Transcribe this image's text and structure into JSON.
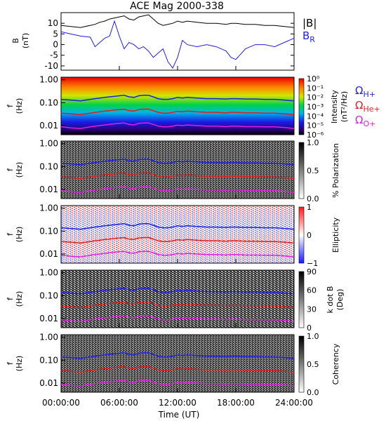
{
  "chart_data": [
    {
      "type": "line",
      "title": "ACE Mag 2000-338",
      "ylabel": "B (nT)",
      "ylabel_lines": [
        "B",
        "(nT)"
      ],
      "yticks": [
        10,
        5,
        0,
        -5,
        -10
      ],
      "ylim": [
        -12,
        15
      ],
      "xlim_hours": [
        0,
        24
      ],
      "x_hours": [
        0,
        1,
        2,
        3,
        3.5,
        4,
        4.5,
        5,
        5.5,
        6,
        6.5,
        7,
        7.5,
        8,
        8.5,
        9,
        9.5,
        10,
        10.5,
        11,
        11.5,
        12,
        12.5,
        13,
        14,
        15,
        16,
        17,
        17.5,
        18,
        19,
        20,
        21,
        22,
        23,
        24
      ],
      "series": [
        {
          "name": "|B|",
          "color": "#000000",
          "values": [
            9,
            8.5,
            8,
            9,
            9.5,
            10.5,
            11,
            12,
            12.5,
            13,
            13.5,
            12,
            11.5,
            13,
            13.5,
            14,
            12,
            10,
            9,
            9.5,
            10,
            11,
            10.5,
            11,
            10.5,
            10,
            10,
            9.5,
            10,
            10,
            9.5,
            9.5,
            9,
            9,
            8.5,
            8
          ]
        },
        {
          "name": "B_R",
          "color": "#1f1fe0",
          "values": [
            6,
            5,
            4,
            3.5,
            -1,
            1,
            3,
            4,
            11,
            4,
            -2,
            1,
            0,
            -2,
            -1,
            -3,
            -6,
            -4,
            -2,
            -8,
            -11,
            -6,
            2,
            0,
            -1,
            0,
            -1,
            -3,
            -6,
            -7,
            -2,
            0,
            0,
            -1,
            1,
            3
          ]
        }
      ],
      "legend_labels": {
        "B_mag": "|B|",
        "B_R_main": "B",
        "B_R_sub": "R"
      }
    },
    {
      "type": "heatmap",
      "ylabel_lines": [
        "f",
        "(Hz)"
      ],
      "yticks": [
        "1.00",
        "0.10",
        "0.01"
      ],
      "colormap": "rainbow",
      "colorbar_ticks": [
        "10⁰",
        "10⁻¹",
        "10⁻²",
        "10⁻³",
        "10⁻⁴",
        "10⁻⁵",
        "10⁻⁶"
      ],
      "colorbar_label_lines": [
        "Intensity",
        "(nT²/Hz)"
      ],
      "legend": [
        {
          "symbol": "Ω",
          "sub": "H+",
          "color": "#1f1fe0"
        },
        {
          "symbol": "Ω",
          "sub": "He+",
          "color": "#e01f1f"
        },
        {
          "symbol": "Ω",
          "sub": "O+",
          "color": "#e01fe0"
        }
      ]
    },
    {
      "type": "heatmap",
      "ylabel_lines": [
        "f",
        "(Hz)"
      ],
      "yticks": [
        "1.00",
        "0.10",
        "0.01"
      ],
      "colormap": "gray",
      "colorbar_ticks": [
        "1.0",
        "0.5",
        "0.0"
      ],
      "colorbar_label_lines": [
        "% Polarization"
      ]
    },
    {
      "type": "heatmap",
      "ylabel_lines": [
        "f",
        "(Hz)"
      ],
      "yticks": [
        "1.00",
        "0.10",
        "0.01"
      ],
      "colormap": "blue-white-red",
      "colorbar_ticks": [
        "1",
        "0",
        "−1"
      ],
      "colorbar_label_lines": [
        "Ellipticity"
      ]
    },
    {
      "type": "heatmap",
      "ylabel_lines": [
        "f",
        "(Hz)"
      ],
      "yticks": [
        "1.00",
        "0.10",
        "0.01"
      ],
      "colormap": "gray",
      "colorbar_ticks": [
        "90",
        "60",
        "30",
        "0"
      ],
      "colorbar_label_lines": [
        "k dot B",
        "(Deg)"
      ]
    },
    {
      "type": "heatmap",
      "ylabel_lines": [
        "f",
        "(Hz)"
      ],
      "yticks": [
        "1.00",
        "0.10",
        "0.01"
      ],
      "colormap": "gray",
      "colorbar_ticks": [
        "1.0",
        "0.5",
        "0.0"
      ],
      "colorbar_label_lines": [
        "Coherency"
      ]
    }
  ],
  "gyrofrequency_traces": {
    "x_hours": [
      0,
      1,
      2,
      3,
      3.5,
      4,
      4.5,
      5,
      5.5,
      6,
      6.5,
      7,
      7.5,
      8,
      8.5,
      9,
      9.5,
      10,
      10.5,
      11,
      11.5,
      12,
      12.5,
      13,
      14,
      15,
      16,
      17,
      17.5,
      18,
      19,
      20,
      21,
      22,
      23,
      24
    ],
    "H+_hz": [
      0.14,
      0.13,
      0.12,
      0.14,
      0.15,
      0.16,
      0.17,
      0.18,
      0.19,
      0.2,
      0.21,
      0.18,
      0.17,
      0.2,
      0.21,
      0.21,
      0.18,
      0.15,
      0.14,
      0.14,
      0.15,
      0.17,
      0.16,
      0.17,
      0.16,
      0.15,
      0.15,
      0.145,
      0.15,
      0.15,
      0.145,
      0.145,
      0.14,
      0.14,
      0.13,
      0.12
    ],
    "He+_hz": [
      0.035,
      0.033,
      0.03,
      0.035,
      0.038,
      0.04,
      0.043,
      0.045,
      0.048,
      0.05,
      0.052,
      0.045,
      0.043,
      0.05,
      0.052,
      0.053,
      0.045,
      0.038,
      0.035,
      0.035,
      0.038,
      0.042,
      0.04,
      0.043,
      0.04,
      0.038,
      0.038,
      0.036,
      0.038,
      0.038,
      0.036,
      0.036,
      0.035,
      0.035,
      0.033,
      0.03
    ],
    "O+_hz": [
      0.009,
      0.008,
      0.0075,
      0.0088,
      0.0095,
      0.01,
      0.0107,
      0.0113,
      0.012,
      0.0125,
      0.013,
      0.0113,
      0.0107,
      0.0125,
      0.013,
      0.0132,
      0.0113,
      0.0095,
      0.0088,
      0.0088,
      0.0095,
      0.0105,
      0.01,
      0.0107,
      0.01,
      0.0095,
      0.0095,
      0.009,
      0.0095,
      0.0095,
      0.009,
      0.009,
      0.0088,
      0.0088,
      0.0082,
      0.0075
    ]
  },
  "shared_x_axis": {
    "tick_labels": [
      "00:00:00",
      "06:00:00",
      "12:00:00",
      "18:00:00",
      "24:00:00"
    ],
    "label": "Time (UT)"
  },
  "colors": {
    "H+": "#1f1fe0",
    "He+": "#e01f1f",
    "O+": "#e01fe0",
    "B_mag": "#000000",
    "B_R": "#1f1fe0"
  }
}
